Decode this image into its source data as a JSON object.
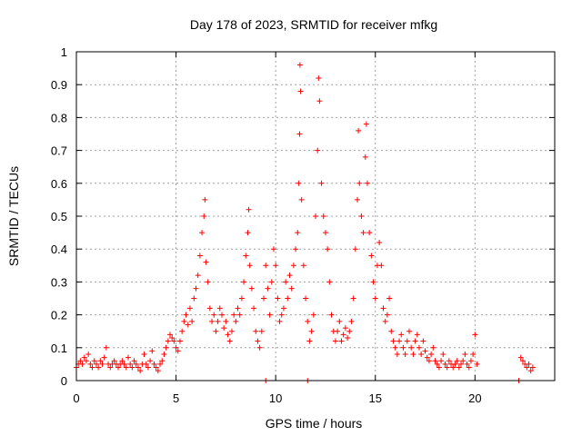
{
  "chart_data": {
    "type": "scatter",
    "title": "Day 178 of 2023, SRMTID for receiver mfkg",
    "xlabel": "GPS time / hours",
    "ylabel": "SRMTID / TECUs",
    "xlim": [
      0,
      24
    ],
    "ylim": [
      0,
      1
    ],
    "xticks": [
      0,
      5,
      10,
      15,
      20
    ],
    "xtick_labels": [
      "0",
      "5",
      "10",
      "15",
      "20"
    ],
    "yticks": [
      0,
      0.1,
      0.2,
      0.3,
      0.4,
      0.5,
      0.6,
      0.7,
      0.8,
      0.9,
      1
    ],
    "ytick_labels": [
      "0",
      "0.1",
      "0.2",
      "0.3",
      "0.4",
      "0.5",
      "0.6",
      "0.7",
      "0.8",
      "0.9",
      "1"
    ],
    "grid": true,
    "marker": "+",
    "color": "#ff0000",
    "series": [
      {
        "name": "SRMTID",
        "points": [
          [
            0.0,
            0.04
          ],
          [
            0.1,
            0.05
          ],
          [
            0.2,
            0.06
          ],
          [
            0.3,
            0.05
          ],
          [
            0.4,
            0.07
          ],
          [
            0.5,
            0.06
          ],
          [
            0.6,
            0.08
          ],
          [
            0.7,
            0.05
          ],
          [
            0.8,
            0.04
          ],
          [
            0.9,
            0.06
          ],
          [
            1.0,
            0.05
          ],
          [
            1.1,
            0.04
          ],
          [
            1.2,
            0.06
          ],
          [
            1.3,
            0.05
          ],
          [
            1.4,
            0.07
          ],
          [
            1.5,
            0.1
          ],
          [
            1.6,
            0.05
          ],
          [
            1.7,
            0.04
          ],
          [
            1.8,
            0.05
          ],
          [
            1.9,
            0.06
          ],
          [
            2.0,
            0.05
          ],
          [
            2.1,
            0.04
          ],
          [
            2.2,
            0.05
          ],
          [
            2.3,
            0.06
          ],
          [
            2.4,
            0.05
          ],
          [
            2.5,
            0.04
          ],
          [
            2.6,
            0.07
          ],
          [
            2.7,
            0.05
          ],
          [
            2.8,
            0.04
          ],
          [
            2.9,
            0.06
          ],
          [
            3.0,
            0.05
          ],
          [
            3.1,
            0.04
          ],
          [
            3.2,
            0.03
          ],
          [
            3.3,
            0.05
          ],
          [
            3.4,
            0.08
          ],
          [
            3.5,
            0.05
          ],
          [
            3.6,
            0.04
          ],
          [
            3.7,
            0.06
          ],
          [
            3.8,
            0.09
          ],
          [
            3.9,
            0.05
          ],
          [
            4.0,
            0.04
          ],
          [
            4.1,
            0.03
          ],
          [
            4.2,
            0.05
          ],
          [
            4.3,
            0.06
          ],
          [
            4.4,
            0.08
          ],
          [
            4.5,
            0.1
          ],
          [
            4.6,
            0.12
          ],
          [
            4.7,
            0.14
          ],
          [
            4.8,
            0.13
          ],
          [
            4.9,
            0.12
          ],
          [
            5.0,
            0.1
          ],
          [
            5.1,
            0.09
          ],
          [
            5.2,
            0.12
          ],
          [
            5.3,
            0.15
          ],
          [
            5.4,
            0.18
          ],
          [
            5.5,
            0.2
          ],
          [
            5.6,
            0.17
          ],
          [
            5.7,
            0.22
          ],
          [
            5.8,
            0.18
          ],
          [
            5.9,
            0.25
          ],
          [
            6.0,
            0.28
          ],
          [
            6.1,
            0.32
          ],
          [
            6.2,
            0.38
          ],
          [
            6.3,
            0.45
          ],
          [
            6.4,
            0.5
          ],
          [
            6.45,
            0.55
          ],
          [
            6.5,
            0.36
          ],
          [
            6.6,
            0.3
          ],
          [
            6.7,
            0.22
          ],
          [
            6.8,
            0.18
          ],
          [
            6.9,
            0.2
          ],
          [
            7.0,
            0.15
          ],
          [
            7.1,
            0.18
          ],
          [
            7.2,
            0.22
          ],
          [
            7.3,
            0.2
          ],
          [
            7.4,
            0.16
          ],
          [
            7.5,
            0.18
          ],
          [
            7.6,
            0.14
          ],
          [
            7.7,
            0.12
          ],
          [
            7.8,
            0.15
          ],
          [
            7.9,
            0.2
          ],
          [
            8.0,
            0.18
          ],
          [
            8.1,
            0.22
          ],
          [
            8.2,
            0.2
          ],
          [
            8.3,
            0.25
          ],
          [
            8.4,
            0.3
          ],
          [
            8.5,
            0.38
          ],
          [
            8.6,
            0.45
          ],
          [
            8.65,
            0.52
          ],
          [
            8.7,
            0.35
          ],
          [
            8.8,
            0.28
          ],
          [
            8.9,
            0.22
          ],
          [
            9.0,
            0.15
          ],
          [
            9.1,
            0.12
          ],
          [
            9.2,
            0.1
          ],
          [
            9.3,
            0.15
          ],
          [
            9.4,
            0.25
          ],
          [
            9.5,
            0.35
          ],
          [
            9.6,
            0.28
          ],
          [
            9.7,
            0.2
          ],
          [
            9.8,
            0.3
          ],
          [
            9.9,
            0.4
          ],
          [
            10.0,
            0.35
          ],
          [
            10.1,
            0.25
          ],
          [
            10.2,
            0.18
          ],
          [
            10.3,
            0.2
          ],
          [
            10.4,
            0.22
          ],
          [
            10.5,
            0.3
          ],
          [
            10.6,
            0.25
          ],
          [
            10.7,
            0.32
          ],
          [
            10.8,
            0.28
          ],
          [
            10.9,
            0.35
          ],
          [
            11.0,
            0.4
          ],
          [
            11.1,
            0.45
          ],
          [
            11.15,
            0.6
          ],
          [
            11.2,
            0.75
          ],
          [
            11.22,
            0.96
          ],
          [
            11.25,
            0.88
          ],
          [
            11.3,
            0.55
          ],
          [
            11.4,
            0.35
          ],
          [
            11.5,
            0.25
          ],
          [
            11.6,
            0.18
          ],
          [
            11.7,
            0.12
          ],
          [
            11.8,
            0.15
          ],
          [
            11.9,
            0.2
          ],
          [
            12.0,
            0.5
          ],
          [
            12.1,
            0.7
          ],
          [
            12.15,
            0.92
          ],
          [
            12.2,
            0.85
          ],
          [
            12.3,
            0.6
          ],
          [
            12.4,
            0.5
          ],
          [
            12.5,
            0.45
          ],
          [
            12.6,
            0.4
          ],
          [
            12.7,
            0.3
          ],
          [
            12.8,
            0.2
          ],
          [
            12.9,
            0.15
          ],
          [
            13.0,
            0.12
          ],
          [
            13.1,
            0.15
          ],
          [
            13.2,
            0.18
          ],
          [
            13.3,
            0.12
          ],
          [
            13.4,
            0.14
          ],
          [
            13.5,
            0.16
          ],
          [
            13.6,
            0.13
          ],
          [
            13.7,
            0.15
          ],
          [
            13.8,
            0.18
          ],
          [
            13.9,
            0.25
          ],
          [
            14.0,
            0.4
          ],
          [
            14.1,
            0.55
          ],
          [
            14.15,
            0.76
          ],
          [
            14.2,
            0.6
          ],
          [
            14.3,
            0.5
          ],
          [
            14.4,
            0.45
          ],
          [
            14.5,
            0.68
          ],
          [
            14.55,
            0.78
          ],
          [
            14.6,
            0.6
          ],
          [
            14.7,
            0.45
          ],
          [
            14.8,
            0.38
          ],
          [
            14.9,
            0.3
          ],
          [
            15.0,
            0.25
          ],
          [
            15.1,
            0.35
          ],
          [
            15.2,
            0.42
          ],
          [
            15.3,
            0.35
          ],
          [
            15.4,
            0.22
          ],
          [
            15.5,
            0.18
          ],
          [
            15.6,
            0.2
          ],
          [
            15.7,
            0.25
          ],
          [
            15.8,
            0.15
          ],
          [
            15.9,
            0.12
          ],
          [
            16.0,
            0.1
          ],
          [
            16.1,
            0.08
          ],
          [
            16.2,
            0.12
          ],
          [
            16.3,
            0.14
          ],
          [
            16.4,
            0.1
          ],
          [
            16.5,
            0.08
          ],
          [
            16.6,
            0.12
          ],
          [
            16.7,
            0.15
          ],
          [
            16.8,
            0.1
          ],
          [
            16.9,
            0.08
          ],
          [
            17.0,
            0.12
          ],
          [
            17.1,
            0.14
          ],
          [
            17.2,
            0.1
          ],
          [
            17.3,
            0.08
          ],
          [
            17.4,
            0.12
          ],
          [
            17.5,
            0.09
          ],
          [
            17.6,
            0.07
          ],
          [
            17.7,
            0.06
          ],
          [
            17.8,
            0.08
          ],
          [
            17.9,
            0.1
          ],
          [
            18.0,
            0.06
          ],
          [
            18.1,
            0.05
          ],
          [
            18.2,
            0.04
          ],
          [
            18.3,
            0.06
          ],
          [
            18.4,
            0.08
          ],
          [
            18.5,
            0.05
          ],
          [
            18.6,
            0.04
          ],
          [
            18.7,
            0.06
          ],
          [
            18.8,
            0.05
          ],
          [
            18.9,
            0.04
          ],
          [
            19.0,
            0.05
          ],
          [
            19.1,
            0.06
          ],
          [
            19.2,
            0.04
          ],
          [
            19.3,
            0.05
          ],
          [
            19.4,
            0.06
          ],
          [
            19.5,
            0.08
          ],
          [
            19.6,
            0.05
          ],
          [
            19.7,
            0.04
          ],
          [
            19.8,
            0.06
          ],
          [
            19.9,
            0.08
          ],
          [
            20.0,
            0.14
          ],
          [
            20.1,
            0.05
          ],
          [
            22.3,
            0.07
          ],
          [
            22.4,
            0.06
          ],
          [
            22.5,
            0.05
          ],
          [
            22.6,
            0.04
          ],
          [
            22.7,
            0.05
          ],
          [
            22.8,
            0.03
          ],
          [
            22.9,
            0.04
          ],
          [
            9.5,
            0.0
          ],
          [
            11.6,
            0.0
          ],
          [
            22.2,
            0.0
          ]
        ]
      }
    ]
  }
}
